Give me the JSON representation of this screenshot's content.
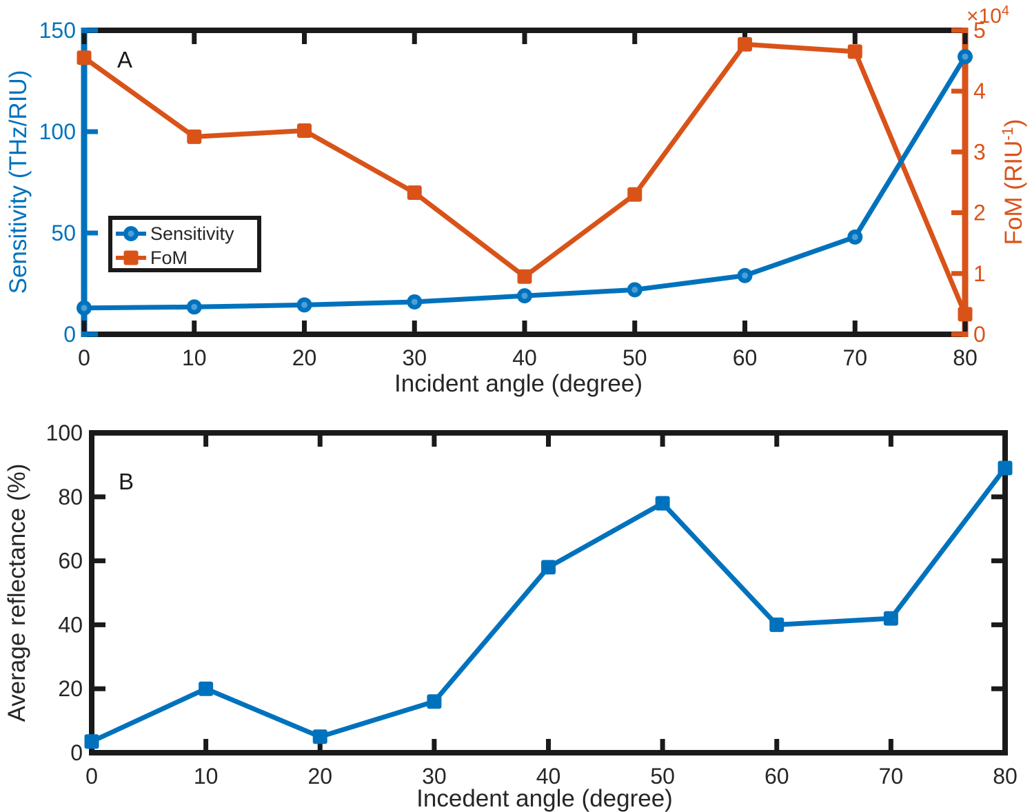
{
  "page": {
    "background": "#ffffff"
  },
  "colors": {
    "blue": "#0072BD",
    "blue_marker_inner": "#4D9FD6",
    "orange": "#D95319",
    "axis_black": "#1A1A1A",
    "text_black": "#262626"
  },
  "chart_data": [
    {
      "type": "line",
      "panel_label": "A",
      "x": [
        0,
        10,
        20,
        30,
        40,
        50,
        60,
        70,
        80
      ],
      "x_tick_labels": [
        "0",
        "10",
        "20",
        "30",
        "40",
        "50",
        "60",
        "70",
        "80"
      ],
      "xlabel": "Incident angle (degree)",
      "x_range": [
        0,
        80
      ],
      "grid": false,
      "y_left": {
        "label": "Sensitivity (THz/RIU)",
        "ticks": [
          0,
          50,
          100,
          150
        ],
        "tick_labels": [
          "0",
          "50",
          "100",
          "150"
        ],
        "range": [
          0,
          150
        ],
        "color": "#0072BD"
      },
      "y_right": {
        "label_prefix": "FoM (RIU",
        "label_sup": "-1",
        "label_suffix": ")",
        "multiplier_prefix": "×10",
        "multiplier_sup": "4",
        "ticks": [
          0,
          1,
          2,
          3,
          4,
          5
        ],
        "tick_labels": [
          "0",
          "1",
          "2",
          "3",
          "4",
          "5"
        ],
        "range": [
          0,
          5
        ],
        "units_note": "ticks in units of 10^4",
        "color": "#D95319"
      },
      "legend": {
        "position": "left-center",
        "entries": [
          {
            "label": "Sensitivity",
            "color": "#0072BD",
            "marker": "circle"
          },
          {
            "label": "FoM",
            "color": "#D95319",
            "marker": "square"
          }
        ]
      },
      "series": [
        {
          "name": "Sensitivity",
          "axis": "left",
          "marker": "circle",
          "color": "#0072BD",
          "values": [
            13,
            13.5,
            14.5,
            16,
            19,
            22,
            29,
            48,
            137
          ]
        },
        {
          "name": "FoM",
          "axis": "right",
          "marker": "square",
          "color": "#D95319",
          "values": [
            4.55,
            3.25,
            3.35,
            2.33,
            0.95,
            2.3,
            4.77,
            4.65,
            0.33
          ]
        }
      ]
    },
    {
      "type": "line",
      "panel_label": "B",
      "x": [
        0,
        10,
        20,
        30,
        40,
        50,
        60,
        70,
        80
      ],
      "x_tick_labels": [
        "0",
        "10",
        "20",
        "30",
        "40",
        "50",
        "60",
        "70",
        "80"
      ],
      "xlabel": "Incedent angle (degree)",
      "x_range": [
        0,
        80
      ],
      "ylabel": "Average reflectance (%)",
      "y_ticks": [
        0,
        20,
        40,
        60,
        80,
        100
      ],
      "y_tick_labels": [
        "0",
        "20",
        "40",
        "60",
        "80",
        "100"
      ],
      "y_range": [
        0,
        100
      ],
      "grid": false,
      "series": [
        {
          "name": "Average reflectance",
          "marker": "square",
          "color": "#0072BD",
          "values": [
            3.5,
            20,
            5,
            16,
            58,
            78,
            40,
            42,
            89
          ]
        }
      ]
    }
  ]
}
